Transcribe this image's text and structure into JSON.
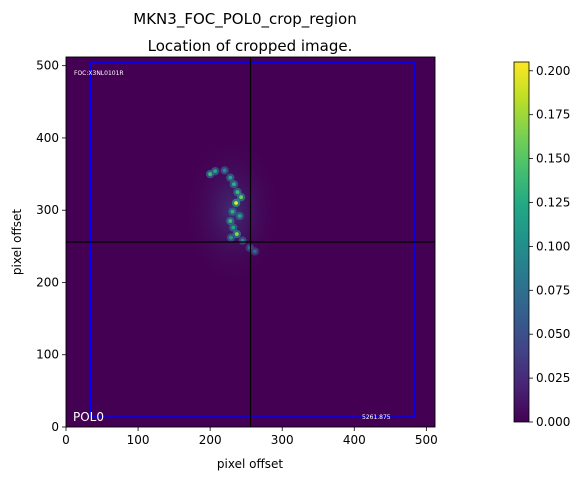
{
  "figure": {
    "title": "MKN3_FOC_POL0_crop_region",
    "subtitle": "Location of cropped image."
  },
  "chart_data": {
    "type": "heatmap",
    "title": "MKN3_FOC_POL0_crop_region",
    "subtitle": "Location of cropped image.",
    "xlabel": "pixel offset",
    "ylabel": "pixel offset",
    "xlim": [
      0,
      512
    ],
    "ylim": [
      0,
      512
    ],
    "xticks": [
      0,
      100,
      200,
      300,
      400,
      500
    ],
    "yticks": [
      0,
      100,
      200,
      300,
      400,
      500
    ],
    "colormap": "viridis",
    "background_color": "#440154",
    "colorbar": {
      "min": 0.0,
      "max": 0.205,
      "ticks": [
        0.0,
        0.025,
        0.05,
        0.075,
        0.1,
        0.125,
        0.15,
        0.175,
        0.2
      ],
      "tick_labels": [
        "0.000",
        "0.025",
        "0.050",
        "0.075",
        "0.100",
        "0.125",
        "0.150",
        "0.175",
        "0.200"
      ]
    },
    "crop_rectangle": {
      "x0": 34,
      "y0": 14,
      "x1": 484,
      "y1": 504,
      "color": "#0000ff"
    },
    "crosshair": {
      "x": 256,
      "y": 256,
      "color": "#000000"
    },
    "annotations": {
      "top_left": "FOC:X3NL0101R",
      "bottom_left": "POL0",
      "bottom_right": "5261.875"
    },
    "sources": [
      {
        "x": 200,
        "y": 350,
        "intensity": 0.14
      },
      {
        "x": 207,
        "y": 354,
        "intensity": 0.12
      },
      {
        "x": 220,
        "y": 355,
        "intensity": 0.1
      },
      {
        "x": 228,
        "y": 345,
        "intensity": 0.12
      },
      {
        "x": 233,
        "y": 336,
        "intensity": 0.13
      },
      {
        "x": 238,
        "y": 325,
        "intensity": 0.14
      },
      {
        "x": 243,
        "y": 318,
        "intensity": 0.16
      },
      {
        "x": 236,
        "y": 310,
        "intensity": 0.2
      },
      {
        "x": 231,
        "y": 298,
        "intensity": 0.13
      },
      {
        "x": 241,
        "y": 292,
        "intensity": 0.12
      },
      {
        "x": 228,
        "y": 285,
        "intensity": 0.14
      },
      {
        "x": 232,
        "y": 276,
        "intensity": 0.12
      },
      {
        "x": 237,
        "y": 267,
        "intensity": 0.17
      },
      {
        "x": 229,
        "y": 262,
        "intensity": 0.11
      },
      {
        "x": 245,
        "y": 258,
        "intensity": 0.1
      },
      {
        "x": 255,
        "y": 248,
        "intensity": 0.08
      },
      {
        "x": 262,
        "y": 243,
        "intensity": 0.07
      }
    ]
  }
}
